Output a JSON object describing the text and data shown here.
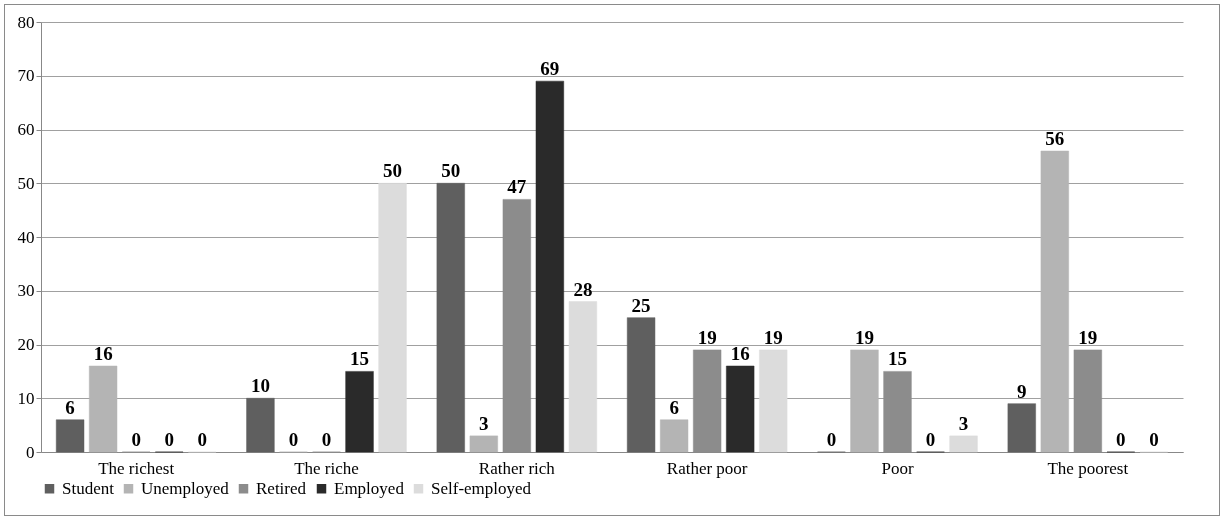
{
  "chart_data": {
    "type": "bar",
    "categories": [
      "The richest",
      "The riche",
      "Rather rich",
      "Rather poor",
      "Poor",
      "The poorest"
    ],
    "series": [
      {
        "name": "Student",
        "color": "#5f5f5f",
        "values": [
          6,
          10,
          50,
          25,
          0,
          9
        ]
      },
      {
        "name": "Unemployed",
        "color": "#b4b4b4",
        "values": [
          16,
          0,
          3,
          6,
          19,
          56
        ]
      },
      {
        "name": "Retired",
        "color": "#8c8c8c",
        "values": [
          0,
          0,
          47,
          19,
          15,
          19
        ]
      },
      {
        "name": "Employed",
        "color": "#2a2a2a",
        "values": [
          0,
          15,
          69,
          16,
          0,
          0
        ]
      },
      {
        "name": "Self-employed",
        "color": "#dcdcdc",
        "values": [
          0,
          50,
          28,
          19,
          3,
          0
        ]
      }
    ],
    "ylim": [
      0,
      80
    ],
    "yticks": [
      0,
      10,
      20,
      30,
      40,
      50,
      60,
      70,
      80
    ],
    "grid": "y",
    "legend": "bottom",
    "data_labels": true
  }
}
